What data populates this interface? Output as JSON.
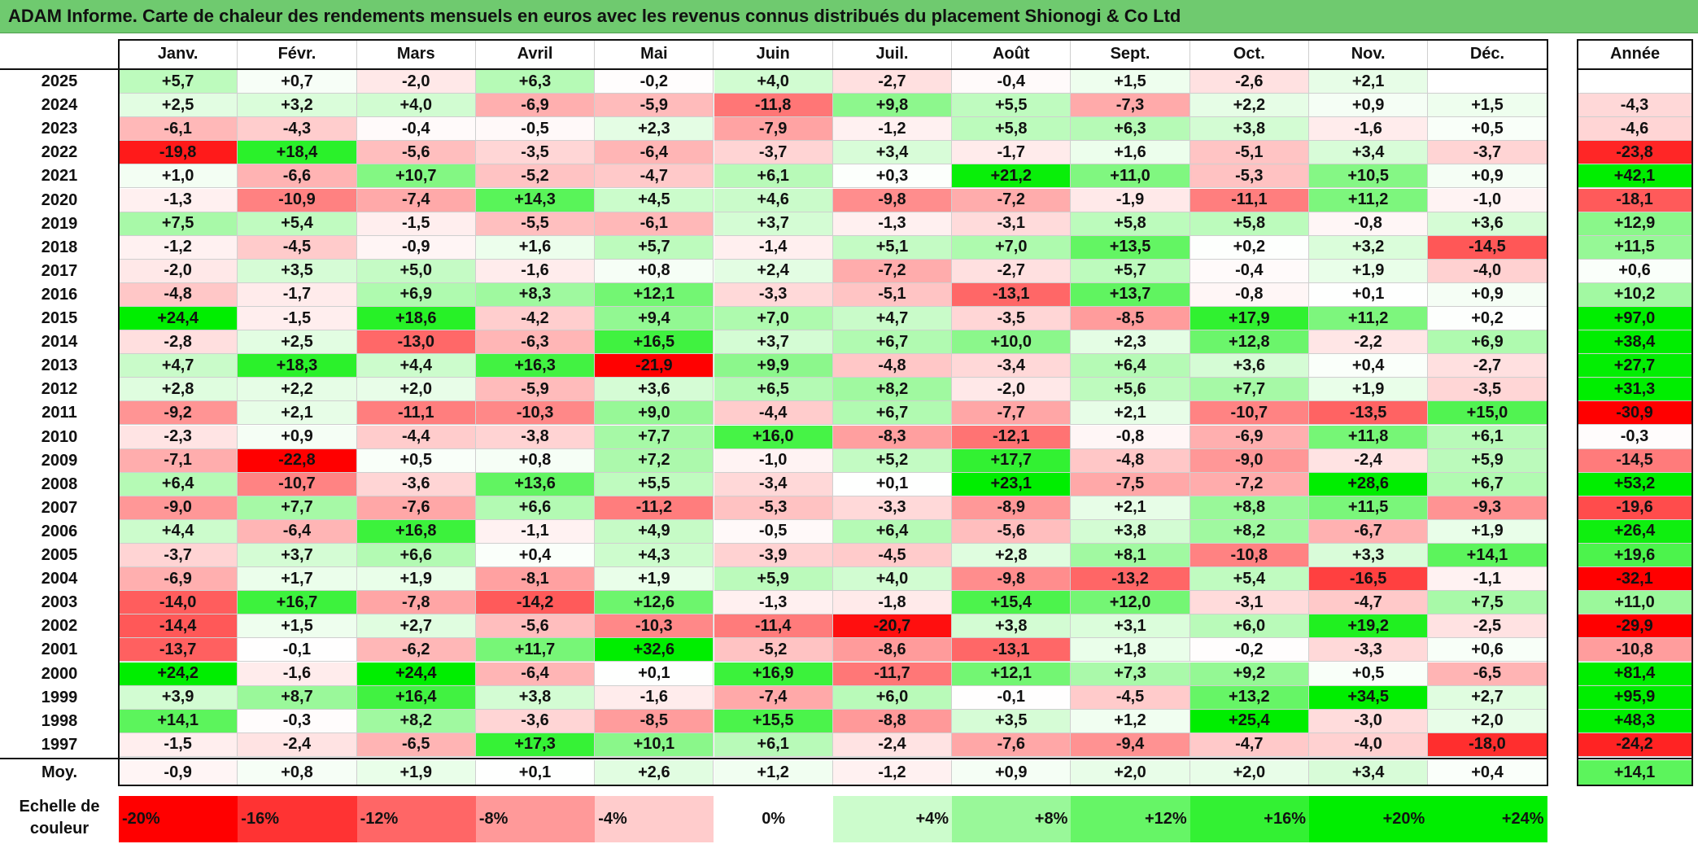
{
  "title": "ADAM Informe. Carte de chaleur des rendements mensuels en euros avec les revenus connus distribués du placement Shionogi & Co Ltd",
  "chart_data": {
    "type": "heatmap",
    "title": "ADAM Informe. Carte de chaleur des rendements mensuels en euros avec les revenus connus distribués du placement Shionogi & Co Ltd",
    "columns": [
      "Janv.",
      "Févr.",
      "Mars",
      "Avril",
      "Mai",
      "Juin",
      "Juil.",
      "Août",
      "Sept.",
      "Oct.",
      "Nov.",
      "Déc."
    ],
    "year_column_label": "Année",
    "rows": [
      {
        "year": "2025",
        "values": [
          "+5,7",
          "+0,7",
          "-2,0",
          "+6,3",
          "-0,2",
          "+4,0",
          "-2,7",
          "-0,4",
          "+1,5",
          "-2,6",
          "+2,1",
          ""
        ],
        "annual": ""
      },
      {
        "year": "2024",
        "values": [
          "+2,5",
          "+3,2",
          "+4,0",
          "-6,9",
          "-5,9",
          "-11,8",
          "+9,8",
          "+5,5",
          "-7,3",
          "+2,2",
          "+0,9",
          "+1,5"
        ],
        "annual": "-4,3"
      },
      {
        "year": "2023",
        "values": [
          "-6,1",
          "-4,3",
          "-0,4",
          "-0,5",
          "+2,3",
          "-7,9",
          "-1,2",
          "+5,8",
          "+6,3",
          "+3,8",
          "-1,6",
          "+0,5"
        ],
        "annual": "-4,6"
      },
      {
        "year": "2022",
        "values": [
          "-19,8",
          "+18,4",
          "-5,6",
          "-3,5",
          "-6,4",
          "-3,7",
          "+3,4",
          "-1,7",
          "+1,6",
          "-5,1",
          "+3,4",
          "-3,7"
        ],
        "annual": "-23,8"
      },
      {
        "year": "2021",
        "values": [
          "+1,0",
          "-6,6",
          "+10,7",
          "-5,2",
          "-4,7",
          "+6,1",
          "+0,3",
          "+21,2",
          "+11,0",
          "-5,3",
          "+10,5",
          "+0,9"
        ],
        "annual": "+42,1"
      },
      {
        "year": "2020",
        "values": [
          "-1,3",
          "-10,9",
          "-7,4",
          "+14,3",
          "+4,5",
          "+4,6",
          "-9,8",
          "-7,2",
          "-1,9",
          "-11,1",
          "+11,2",
          "-1,0"
        ],
        "annual": "-18,1"
      },
      {
        "year": "2019",
        "values": [
          "+7,5",
          "+5,4",
          "-1,5",
          "-5,5",
          "-6,1",
          "+3,7",
          "-1,3",
          "-3,1",
          "+5,8",
          "+5,8",
          "-0,8",
          "+3,6"
        ],
        "annual": "+12,9"
      },
      {
        "year": "2018",
        "values": [
          "-1,2",
          "-4,5",
          "-0,9",
          "+1,6",
          "+5,7",
          "-1,4",
          "+5,1",
          "+7,0",
          "+13,5",
          "+0,2",
          "+3,2",
          "-14,5"
        ],
        "annual": "+11,5"
      },
      {
        "year": "2017",
        "values": [
          "-2,0",
          "+3,5",
          "+5,0",
          "-1,6",
          "+0,8",
          "+2,4",
          "-7,2",
          "-2,7",
          "+5,7",
          "-0,4",
          "+1,9",
          "-4,0"
        ],
        "annual": "+0,6"
      },
      {
        "year": "2016",
        "values": [
          "-4,8",
          "-1,7",
          "+6,9",
          "+8,3",
          "+12,1",
          "-3,3",
          "-5,1",
          "-13,1",
          "+13,7",
          "-0,8",
          "+0,1",
          "+0,9"
        ],
        "annual": "+10,2"
      },
      {
        "year": "2015",
        "values": [
          "+24,4",
          "-1,5",
          "+18,6",
          "-4,2",
          "+9,4",
          "+7,0",
          "+4,7",
          "-3,5",
          "-8,5",
          "+17,9",
          "+11,2",
          "+0,2"
        ],
        "annual": "+97,0"
      },
      {
        "year": "2014",
        "values": [
          "-2,8",
          "+2,5",
          "-13,0",
          "-6,3",
          "+16,5",
          "+3,7",
          "+6,7",
          "+10,0",
          "+2,3",
          "+12,8",
          "-2,2",
          "+6,9"
        ],
        "annual": "+38,4"
      },
      {
        "year": "2013",
        "values": [
          "+4,7",
          "+18,3",
          "+4,4",
          "+16,3",
          "-21,9",
          "+9,9",
          "-4,8",
          "-3,4",
          "+6,4",
          "+3,6",
          "+0,4",
          "-2,7"
        ],
        "annual": "+27,7"
      },
      {
        "year": "2012",
        "values": [
          "+2,8",
          "+2,2",
          "+2,0",
          "-5,9",
          "+3,6",
          "+6,5",
          "+8,2",
          "-2,0",
          "+5,6",
          "+7,7",
          "+1,9",
          "-3,5"
        ],
        "annual": "+31,3"
      },
      {
        "year": "2011",
        "values": [
          "-9,2",
          "+2,1",
          "-11,1",
          "-10,3",
          "+9,0",
          "-4,4",
          "+6,7",
          "-7,7",
          "+2,1",
          "-10,7",
          "-13,5",
          "+15,0"
        ],
        "annual": "-30,9"
      },
      {
        "year": "2010",
        "values": [
          "-2,3",
          "+0,9",
          "-4,4",
          "-3,8",
          "+7,7",
          "+16,0",
          "-8,3",
          "-12,1",
          "-0,8",
          "-6,9",
          "+11,8",
          "+6,1"
        ],
        "annual": "-0,3"
      },
      {
        "year": "2009",
        "values": [
          "-7,1",
          "-22,8",
          "+0,5",
          "+0,8",
          "+7,2",
          "-1,0",
          "+5,2",
          "+17,7",
          "-4,8",
          "-9,0",
          "-2,4",
          "+5,9"
        ],
        "annual": "-14,5"
      },
      {
        "year": "2008",
        "values": [
          "+6,4",
          "-10,7",
          "-3,6",
          "+13,6",
          "+5,5",
          "-3,4",
          "+0,1",
          "+23,1",
          "-7,5",
          "-7,2",
          "+28,6",
          "+6,7"
        ],
        "annual": "+53,2"
      },
      {
        "year": "2007",
        "values": [
          "-9,0",
          "+7,7",
          "-7,6",
          "+6,6",
          "-11,2",
          "-5,3",
          "-3,3",
          "-8,9",
          "+2,1",
          "+8,8",
          "+11,5",
          "-9,3"
        ],
        "annual": "-19,6"
      },
      {
        "year": "2006",
        "values": [
          "+4,4",
          "-6,4",
          "+16,8",
          "-1,1",
          "+4,9",
          "-0,5",
          "+6,4",
          "-5,6",
          "+3,8",
          "+8,2",
          "-6,7",
          "+1,9"
        ],
        "annual": "+26,4"
      },
      {
        "year": "2005",
        "values": [
          "-3,7",
          "+3,7",
          "+6,6",
          "+0,4",
          "+4,3",
          "-3,9",
          "-4,5",
          "+2,8",
          "+8,1",
          "-10,8",
          "+3,3",
          "+14,1"
        ],
        "annual": "+19,6"
      },
      {
        "year": "2004",
        "values": [
          "-6,9",
          "+1,7",
          "+1,9",
          "-8,1",
          "+1,9",
          "+5,9",
          "+4,0",
          "-9,8",
          "-13,2",
          "+5,4",
          "-16,5",
          "-1,1"
        ],
        "annual": "-32,1"
      },
      {
        "year": "2003",
        "values": [
          "-14,0",
          "+16,7",
          "-7,8",
          "-14,2",
          "+12,6",
          "-1,3",
          "-1,8",
          "+15,4",
          "+12,0",
          "-3,1",
          "-4,7",
          "+7,5"
        ],
        "annual": "+11,0"
      },
      {
        "year": "2002",
        "values": [
          "-14,4",
          "+1,5",
          "+2,7",
          "-5,6",
          "-10,3",
          "-11,4",
          "-20,7",
          "+3,8",
          "+3,1",
          "+6,0",
          "+19,2",
          "-2,5"
        ],
        "annual": "-29,9"
      },
      {
        "year": "2001",
        "values": [
          "-13,7",
          "-0,1",
          "-6,2",
          "+11,7",
          "+32,6",
          "-5,2",
          "-8,6",
          "-13,1",
          "+1,8",
          "-0,2",
          "-3,3",
          "+0,6"
        ],
        "annual": "-10,8"
      },
      {
        "year": "2000",
        "values": [
          "+24,2",
          "-1,6",
          "+24,4",
          "-6,4",
          "+0,1",
          "+16,9",
          "-11,7",
          "+12,1",
          "+7,3",
          "+9,2",
          "+0,5",
          "-6,5"
        ],
        "annual": "+81,4"
      },
      {
        "year": "1999",
        "values": [
          "+3,9",
          "+8,7",
          "+16,4",
          "+3,8",
          "-1,6",
          "-7,4",
          "+6,0",
          "-0,1",
          "-4,5",
          "+13,2",
          "+34,5",
          "+2,7"
        ],
        "annual": "+95,9"
      },
      {
        "year": "1998",
        "values": [
          "+14,1",
          "-0,3",
          "+8,2",
          "-3,6",
          "-8,5",
          "+15,5",
          "-8,8",
          "+3,5",
          "+1,2",
          "+25,4",
          "-3,0",
          "+2,0"
        ],
        "annual": "+48,3"
      },
      {
        "year": "1997",
        "values": [
          "-1,5",
          "-2,4",
          "-6,5",
          "+17,3",
          "+10,1",
          "+6,1",
          "-2,4",
          "-7,6",
          "-9,4",
          "-4,7",
          "-4,0",
          "-18,0"
        ],
        "annual": "-24,2"
      }
    ],
    "average_row": {
      "label": "Moy.",
      "values": [
        "-0,9",
        "+0,8",
        "+1,9",
        "+0,1",
        "+2,6",
        "+1,2",
        "-1,2",
        "+0,9",
        "+2,0",
        "+2,0",
        "+3,4",
        "+0,4"
      ],
      "annual": "+14,1"
    },
    "color_scale": {
      "label": "Echelle de couleur",
      "steps": [
        "-20%",
        "-16%",
        "-12%",
        "-8%",
        "-4%",
        "0%",
        "+4%",
        "+8%",
        "+12%",
        "+16%",
        "+20%",
        "+24%"
      ],
      "negative_color": "#ff0000",
      "zero_color": "#ffffff",
      "positive_color": "#00ee00"
    }
  }
}
